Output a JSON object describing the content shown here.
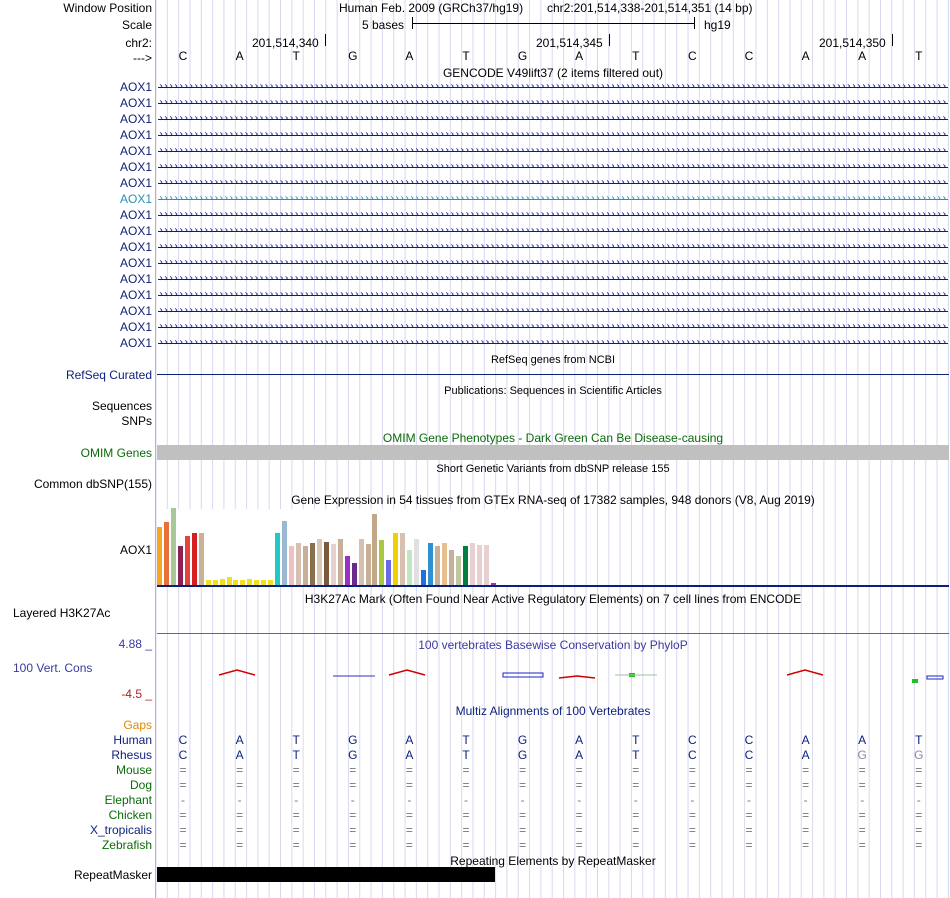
{
  "header": {
    "window_position_label": "Window Position",
    "scale_label": "Scale",
    "chr_label": "chr2:",
    "strand_label": "--->",
    "assembly_text": "Human Feb. 2009 (GRCh37/hg19)",
    "position_text": "chr2:201,514,338-201,514,351 (14 bp)",
    "scale_text": "5 bases",
    "db_text": "hg19",
    "coords": [
      "201,514,340",
      "201,514,345",
      "201,514,350"
    ],
    "bases": [
      "C",
      "A",
      "T",
      "G",
      "A",
      "T",
      "G",
      "A",
      "T",
      "C",
      "C",
      "A",
      "A",
      "T"
    ]
  },
  "gencode": {
    "title": "GENCODE V49lift37 (2 items filtered out)",
    "gene_labels": [
      "AOX1",
      "AOX1",
      "AOX1",
      "AOX1",
      "AOX1",
      "AOX1",
      "AOX1",
      "AOX1",
      "AOX1",
      "AOX1",
      "AOX1",
      "AOX1",
      "AOX1",
      "AOX1",
      "AOX1",
      "AOX1",
      "AOX1"
    ],
    "highlight_index": 7,
    "colors": {
      "normal": "#0b1f7c",
      "highlight": "#2b8fb5"
    }
  },
  "refseq": {
    "title": "RefSeq genes from NCBI",
    "label": "RefSeq Curated"
  },
  "publications": {
    "title": "Publications: Sequences in Scientific Articles",
    "label_line1": "Sequences",
    "label_line2": "SNPs"
  },
  "omim": {
    "title": "OMIM Gene Phenotypes - Dark Green Can Be Disease-causing",
    "label": "OMIM Genes",
    "color": "#0a6b0a"
  },
  "dbsnp": {
    "title": "Short Genetic Variants from dbSNP release 155",
    "label": "Common dbSNP(155)"
  },
  "gtex": {
    "title": "Gene Expression in 54 tissues from GTEx RNA-seq of 17382 samples, 948 donors (V8, Aug 2019)",
    "label": "AOX1",
    "bar_levels": [
      0.75,
      0.82,
      1.0,
      0.5,
      0.63,
      0.68,
      0.68,
      0.07,
      0.07,
      0.08,
      0.1,
      0.06,
      0.06,
      0.08,
      0.07,
      0.07,
      0.07,
      0.68,
      0.83,
      0.51,
      0.55,
      0.51,
      0.55,
      0.6,
      0.56,
      0.53,
      0.6,
      0.38,
      0.28,
      0.6,
      0.53,
      0.92,
      0.58,
      0.32,
      0.68,
      0.68,
      0.45,
      0.6,
      0.2,
      0.55,
      0.51,
      0.55,
      0.45,
      0.38,
      0.5,
      0.55,
      0.52,
      0.52,
      0.03,
      0.0,
      0.0,
      0.0,
      0.0,
      0.0
    ],
    "bar_colors": [
      "#f5a623",
      "#e8703a",
      "#a8c89a",
      "#8b2252",
      "#e0443a",
      "#d62020",
      "#c9b295",
      "#f0e020",
      "#f0e020",
      "#f0e020",
      "#f0e020",
      "#f0e020",
      "#f0e020",
      "#f0e020",
      "#f0e020",
      "#f0e020",
      "#f0e020",
      "#20c8c8",
      "#9ab8d0",
      "#f0c0c0",
      "#d8c0b0",
      "#c8b098",
      "#8b6e4e",
      "#d8c8b8",
      "#7a5a3a",
      "#e8d0d0",
      "#c8b098",
      "#9a30c8",
      "#6a2a8a",
      "#d8c0b0",
      "#c8b098",
      "#c0a888",
      "#a8c840",
      "#6a6ae8",
      "#f0d000",
      "#d8c0b0",
      "#c0e8c0",
      "#e0e0e0",
      "#2070e0",
      "#3090d0",
      "#c8b098",
      "#e8c090",
      "#c8b098",
      "#c0c8a0",
      "#008040",
      "#e8d0d0",
      "#e8d0d0",
      "#e8d0d0",
      "#9a30c8",
      "#ffffff",
      "#ffffff",
      "#ffffff",
      "#ffffff",
      "#ffffff"
    ]
  },
  "h3k27ac": {
    "title": "H3K27Ac Mark (Often Found Near Active Regulatory Elements) on 7 cell lines from ENCODE",
    "label": "Layered H3K27Ac"
  },
  "conservation": {
    "title": "100 vertebrates Basewise Conservation by PhyloP",
    "label": "100 Vert. Cons",
    "max_label": "4.88 _",
    "min_label": "-4.5 _",
    "title_color": "#3a3aa0"
  },
  "multiz": {
    "title": "Multiz Alignments of 100 Vertebrates",
    "gaps_label": "Gaps",
    "species": [
      {
        "name": "Human",
        "color": "#0b1f7c",
        "row": [
          "C",
          "A",
          "T",
          "G",
          "A",
          "T",
          "G",
          "A",
          "T",
          "C",
          "C",
          "A",
          "A",
          "T"
        ],
        "row_color": "#0b1f7c"
      },
      {
        "name": "Rhesus",
        "color": "#0b1f7c",
        "row": [
          "C",
          "A",
          "T",
          "G",
          "A",
          "T",
          "G",
          "A",
          "T",
          "C",
          "C",
          "A",
          "G",
          "G"
        ],
        "row_color": "#0b1f7c"
      },
      {
        "name": "Mouse",
        "color": "#0a6b0a",
        "row": [
          "=",
          "=",
          "=",
          "=",
          "=",
          "=",
          "=",
          "=",
          "=",
          "=",
          "=",
          "=",
          "=",
          "="
        ],
        "row_color": "#777777"
      },
      {
        "name": "Dog",
        "color": "#0a6b0a",
        "row": [
          "=",
          "=",
          "=",
          "=",
          "=",
          "=",
          "=",
          "=",
          "=",
          "=",
          "=",
          "=",
          "=",
          "="
        ],
        "row_color": "#777777"
      },
      {
        "name": "Elephant",
        "color": "#0a6b0a",
        "row": [
          "-",
          "-",
          "-",
          "-",
          "-",
          "-",
          "-",
          "-",
          "-",
          "-",
          "-",
          "-",
          "-",
          "-"
        ],
        "row_color": "#777777"
      },
      {
        "name": "Chicken",
        "color": "#0a6b0a",
        "row": [
          "=",
          "=",
          "=",
          "=",
          "=",
          "=",
          "=",
          "=",
          "=",
          "=",
          "=",
          "=",
          "=",
          "="
        ],
        "row_color": "#777777"
      },
      {
        "name": "X_tropicalis",
        "color": "#0b1f7c",
        "row": [
          "=",
          "=",
          "=",
          "=",
          "=",
          "=",
          "=",
          "=",
          "=",
          "=",
          "=",
          "=",
          "=",
          "="
        ],
        "row_color": "#777777"
      },
      {
        "name": "Zebrafish",
        "color": "#0a6b0a",
        "row": [
          "=",
          "=",
          "=",
          "=",
          "=",
          "=",
          "=",
          "=",
          "=",
          "=",
          "=",
          "=",
          "=",
          "="
        ],
        "row_color": "#777777"
      }
    ]
  },
  "repeatmasker": {
    "title": "Repeating Elements by RepeatMasker",
    "label": "RepeatMasker"
  }
}
